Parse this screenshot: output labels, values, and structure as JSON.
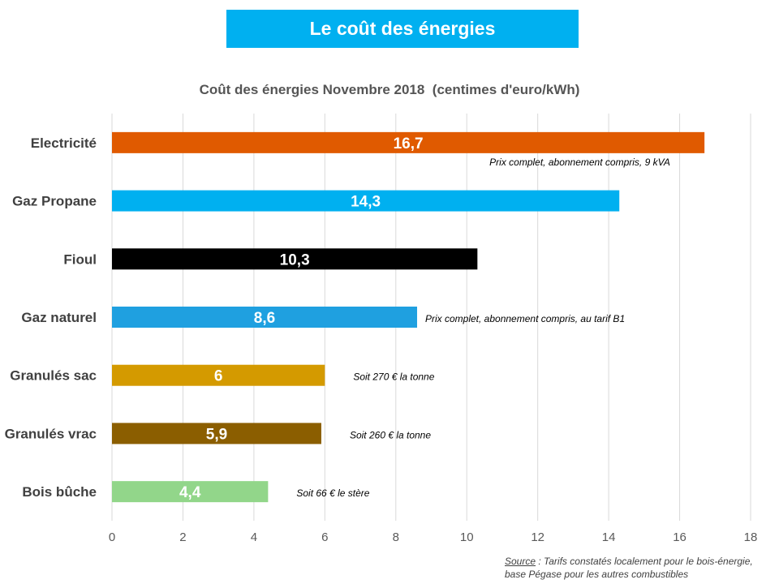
{
  "banner": {
    "title": "Le coût des énergies"
  },
  "chart_data": {
    "type": "bar",
    "orientation": "horizontal",
    "title": "Coût des énergies Novembre 2018",
    "subtitle": "(centimes d'euro/kWh)",
    "categories": [
      "Electricité",
      "Gaz Propane",
      "Fioul",
      "Gaz naturel",
      "Granulés sac",
      "Granulés vrac",
      "Bois bûche"
    ],
    "values": [
      16.7,
      14.3,
      10.3,
      8.6,
      6,
      5.9,
      4.4
    ],
    "value_labels": [
      "16,7",
      "14,3",
      "10,3",
      "8,6",
      "6",
      "5,9",
      "4,4"
    ],
    "colors": [
      "#e05a00",
      "#00b0f0",
      "#000000",
      "#1fa0e0",
      "#d49a00",
      "#8b5e00",
      "#92d68a"
    ],
    "annotations": [
      "Prix complet, abonnement compris, 9 kVA",
      "",
      "",
      "Prix complet, abonnement compris, au tarif B1",
      "Soit 270 € la tonne",
      "Soit 260 € la tonne",
      "Soit 66 € le stère"
    ],
    "xlim": [
      0,
      18
    ],
    "xticks": [
      0,
      2,
      4,
      6,
      8,
      10,
      12,
      14,
      16,
      18
    ],
    "grid": true,
    "legend": "none"
  },
  "source": {
    "label": "Source",
    "text": " : Tarifs constatés localement pour le bois-énergie, base Pégase pour les autres combustibles"
  }
}
